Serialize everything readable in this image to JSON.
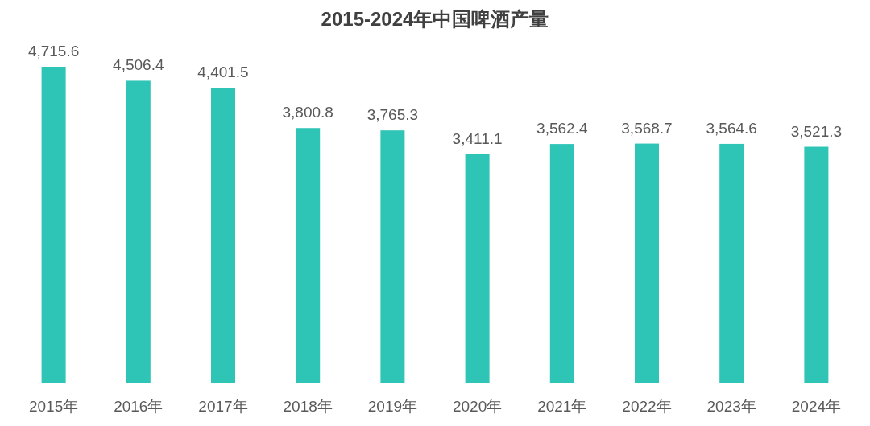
{
  "chart_data": {
    "type": "bar",
    "title": "2015-2024年中国啤酒产量",
    "categories": [
      "2015年",
      "2016年",
      "2017年",
      "2018年",
      "2019年",
      "2020年",
      "2021年",
      "2022年",
      "2023年",
      "2024年"
    ],
    "values": [
      4715.6,
      4506.4,
      4401.5,
      3800.8,
      3765.3,
      3411.1,
      3562.4,
      3568.7,
      3564.6,
      3521.3
    ],
    "value_labels": [
      "4,715.6",
      "4,506.4",
      "4,401.5",
      "3,800.8",
      "3,765.3",
      "3,411.1",
      "3,562.4",
      "3,568.7",
      "3,564.6",
      "3,521.3"
    ],
    "color": "#2ec4b6"
  }
}
